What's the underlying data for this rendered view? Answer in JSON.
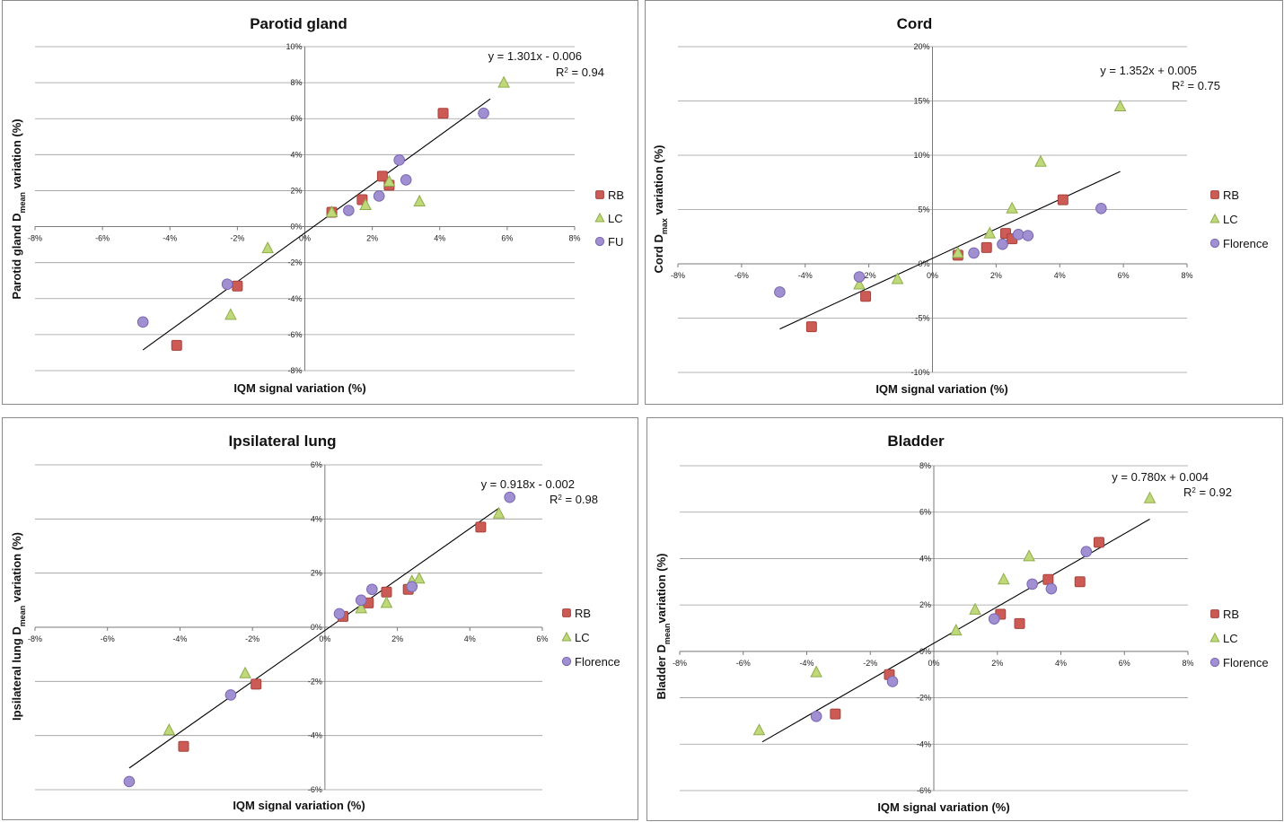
{
  "colors": {
    "RB_fill": "#cc5b55",
    "RB_stroke": "#a8413c",
    "LC_fill": "#bfd87a",
    "LC_stroke": "#8fad4a",
    "FU_fill": "#a08fd1",
    "FU_stroke": "#7a67b3"
  },
  "chart_data": [
    {
      "type": "scatter",
      "title": "Parotid gland",
      "xlabel": "IQM signal variation (%)",
      "ylabel_pre": "Parotid gland D",
      "ylabel_sub": "mean",
      "ylabel_post": " variation (%)",
      "xlim": [
        -8,
        8
      ],
      "ylim": [
        -8,
        10
      ],
      "xticks": [
        -8,
        -6,
        -4,
        -2,
        0,
        2,
        4,
        6,
        8
      ],
      "xtick_labels": [
        "-8%",
        "-6%",
        "-4%",
        "-2%",
        "0%",
        "2%",
        "4%",
        "6%",
        "8%"
      ],
      "yticks": [
        -8,
        -6,
        -4,
        -2,
        0,
        2,
        4,
        6,
        8,
        10
      ],
      "ytick_labels": [
        "-8%",
        "-6%",
        "-4%",
        "-2%",
        "0%",
        "2%",
        "4%",
        "6%",
        "8%",
        "10%"
      ],
      "equation": "y = 1.301x - 0.006",
      "r2_pre": "R",
      "r2_sup": "2",
      "r2_post": " = 0.94",
      "trendline": [
        [
          -4.8,
          -6.85
        ],
        [
          5.5,
          7.1
        ]
      ],
      "legend_position": "right",
      "series": [
        {
          "name": "RB",
          "marker": "square",
          "points": [
            [
              -3.8,
              -6.6
            ],
            [
              -2.0,
              -3.3
            ],
            [
              0.8,
              0.8
            ],
            [
              1.7,
              1.5
            ],
            [
              2.3,
              2.8
            ],
            [
              2.5,
              2.3
            ],
            [
              4.1,
              6.3
            ]
          ]
        },
        {
          "name": "LC",
          "marker": "triangle",
          "points": [
            [
              5.9,
              8.0
            ],
            [
              3.4,
              1.4
            ],
            [
              2.5,
              2.5
            ],
            [
              1.8,
              1.2
            ],
            [
              0.8,
              0.8
            ],
            [
              -1.1,
              -1.2
            ],
            [
              -2.2,
              -4.9
            ]
          ]
        },
        {
          "name": "FU",
          "marker": "circle",
          "points": [
            [
              -4.8,
              -5.3
            ],
            [
              -2.3,
              -3.2
            ],
            [
              1.3,
              0.9
            ],
            [
              2.2,
              1.7
            ],
            [
              2.8,
              3.7
            ],
            [
              3.0,
              2.6
            ],
            [
              5.3,
              6.3
            ]
          ]
        }
      ]
    },
    {
      "type": "scatter",
      "title": "Cord",
      "xlabel": "IQM signal variation (%)",
      "ylabel_pre": "Cord D",
      "ylabel_sub": "max",
      "ylabel_post": " variation (%)",
      "xlim": [
        -8,
        8
      ],
      "ylim": [
        -10,
        20
      ],
      "xticks": [
        -8,
        -6,
        -4,
        -2,
        0,
        2,
        4,
        6,
        8
      ],
      "xtick_labels": [
        "-8%",
        "-6%",
        "-4%",
        "-2%",
        "0%",
        "2%",
        "4%",
        "6%",
        "8%"
      ],
      "yticks": [
        -10,
        -5,
        0,
        5,
        10,
        15,
        20
      ],
      "ytick_labels": [
        "-10%",
        "-5%",
        "0%",
        "5%",
        "10%",
        "15%",
        "20%"
      ],
      "equation": "y = 1.352x + 0.005",
      "r2_pre": "R",
      "r2_sup": "2",
      "r2_post": " = 0.75",
      "trendline": [
        [
          -4.8,
          -6.0
        ],
        [
          5.9,
          8.5
        ]
      ],
      "legend_position": "right",
      "series": [
        {
          "name": "RB",
          "marker": "square",
          "points": [
            [
              -3.8,
              -5.8
            ],
            [
              -2.1,
              -3.0
            ],
            [
              0.8,
              0.8
            ],
            [
              1.7,
              1.5
            ],
            [
              2.3,
              2.8
            ],
            [
              2.5,
              2.3
            ],
            [
              4.1,
              5.9
            ]
          ]
        },
        {
          "name": "LC",
          "marker": "triangle",
          "points": [
            [
              5.9,
              14.5
            ],
            [
              3.4,
              9.4
            ],
            [
              2.5,
              5.1
            ],
            [
              1.8,
              2.8
            ],
            [
              0.8,
              1.0
            ],
            [
              -1.1,
              -1.4
            ],
            [
              -2.3,
              -1.9
            ]
          ]
        },
        {
          "name": "Florence",
          "marker": "circle",
          "points": [
            [
              -4.8,
              -2.6
            ],
            [
              -2.3,
              -1.2
            ],
            [
              1.3,
              1.0
            ],
            [
              2.2,
              1.8
            ],
            [
              2.7,
              2.7
            ],
            [
              3.0,
              2.6
            ],
            [
              5.3,
              5.1
            ]
          ]
        }
      ]
    },
    {
      "type": "scatter",
      "title": "Ipsilateral lung",
      "xlabel": "IQM signal variation (%)",
      "ylabel_pre": "Ipsilateral lung D",
      "ylabel_sub": "mean",
      "ylabel_post": " variation (%)",
      "xlim": [
        -8,
        6
      ],
      "ylim": [
        -6,
        6
      ],
      "xticks": [
        -8,
        -6,
        -4,
        -2,
        0,
        2,
        4,
        6
      ],
      "xtick_labels": [
        "-8%",
        "-6%",
        "-4%",
        "-2%",
        "0%",
        "2%",
        "4%",
        "6%"
      ],
      "yticks": [
        -6,
        -4,
        -2,
        0,
        2,
        4,
        6
      ],
      "ytick_labels": [
        "-6%",
        "-4%",
        "-2%",
        "0%",
        "2%",
        "4%",
        "6%"
      ],
      "equation": "y = 0.918x - 0.002",
      "r2_pre": "R",
      "r2_sup": "2",
      "r2_post": " = 0.98",
      "trendline": [
        [
          -5.4,
          -5.2
        ],
        [
          4.8,
          4.4
        ]
      ],
      "legend_position": "right",
      "series": [
        {
          "name": "RB",
          "marker": "square",
          "points": [
            [
              -3.9,
              -4.4
            ],
            [
              -1.9,
              -2.1
            ],
            [
              0.5,
              0.4
            ],
            [
              1.2,
              0.9
            ],
            [
              1.7,
              1.3
            ],
            [
              2.3,
              1.4
            ],
            [
              4.3,
              3.7
            ]
          ]
        },
        {
          "name": "LC",
          "marker": "triangle",
          "points": [
            [
              -4.3,
              -3.8
            ],
            [
              -2.2,
              -1.7
            ],
            [
              1.0,
              0.7
            ],
            [
              1.7,
              0.9
            ],
            [
              2.4,
              1.7
            ],
            [
              2.6,
              1.8
            ],
            [
              4.8,
              4.2
            ]
          ]
        },
        {
          "name": "Florence",
          "marker": "circle",
          "points": [
            [
              -5.4,
              -5.7
            ],
            [
              -2.6,
              -2.5
            ],
            [
              0.4,
              0.5
            ],
            [
              1.0,
              1.0
            ],
            [
              1.3,
              1.4
            ],
            [
              2.4,
              1.5
            ],
            [
              5.1,
              4.8
            ]
          ]
        }
      ]
    },
    {
      "type": "scatter",
      "title": "Bladder",
      "xlabel": "IQM signal variation (%)",
      "ylabel_pre": "Bladder D",
      "ylabel_sub": "mean",
      "ylabel_post": "variation (%)",
      "xlim": [
        -8,
        8
      ],
      "ylim": [
        -6,
        8
      ],
      "xticks": [
        -8,
        -6,
        -4,
        -2,
        0,
        2,
        4,
        6,
        8
      ],
      "xtick_labels": [
        "-8%",
        "-6%",
        "-4%",
        "-2%",
        "0%",
        "2%",
        "4%",
        "6%",
        "8%"
      ],
      "yticks": [
        -6,
        -4,
        -2,
        0,
        2,
        4,
        6,
        8
      ],
      "ytick_labels": [
        "-6%",
        "-4%",
        "-2%",
        "0%",
        "2%",
        "4%",
        "6%",
        "8%"
      ],
      "equation": "y = 0.780x + 0.004",
      "r2_pre": "R",
      "r2_sup": "2",
      "r2_post": " = 0.92",
      "trendline": [
        [
          -5.4,
          -3.9
        ],
        [
          6.8,
          5.7
        ]
      ],
      "legend_position": "right",
      "series": [
        {
          "name": "RB",
          "marker": "square",
          "points": [
            [
              -3.1,
              -2.7
            ],
            [
              -1.4,
              -1.0
            ],
            [
              2.1,
              1.6
            ],
            [
              2.7,
              1.2
            ],
            [
              3.6,
              3.1
            ],
            [
              4.6,
              3.0
            ],
            [
              5.2,
              4.7
            ]
          ]
        },
        {
          "name": "LC",
          "marker": "triangle",
          "points": [
            [
              -5.5,
              -3.4
            ],
            [
              -3.7,
              -0.9
            ],
            [
              0.7,
              0.9
            ],
            [
              1.3,
              1.8
            ],
            [
              2.2,
              3.1
            ],
            [
              3.0,
              4.1
            ],
            [
              6.8,
              6.6
            ]
          ]
        },
        {
          "name": "Florence",
          "marker": "circle",
          "points": [
            [
              -3.7,
              -2.8
            ],
            [
              -1.3,
              -1.3
            ],
            [
              1.9,
              1.4
            ],
            [
              3.1,
              2.9
            ],
            [
              3.7,
              2.7
            ],
            [
              4.8,
              4.3
            ]
          ]
        }
      ]
    }
  ]
}
